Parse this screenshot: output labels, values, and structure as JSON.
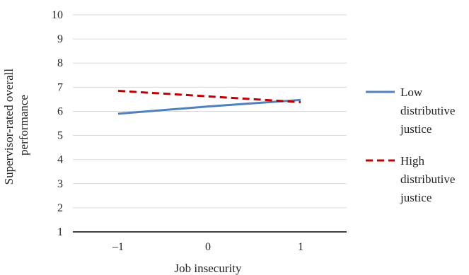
{
  "chart_data": {
    "type": "line",
    "title": "",
    "xlabel": "Job insecurity",
    "ylabel_lines": [
      "Supervisor-rated overall",
      "performance"
    ],
    "categories": [
      "–1",
      "0",
      "1"
    ],
    "x": [
      -1,
      0,
      1
    ],
    "ylim": [
      1,
      10
    ],
    "yticks": [
      "1",
      "2",
      "3",
      "4",
      "5",
      "6",
      "7",
      "8",
      "9",
      "10"
    ],
    "grid": true,
    "legend_position": "right",
    "series": [
      {
        "name_lines": [
          "Low",
          "distributive",
          "justice"
        ],
        "values": [
          5.9,
          6.2,
          6.47
        ],
        "color": "#4f81bd",
        "style": "solid"
      },
      {
        "name_lines": [
          "High",
          "distributive",
          "justice"
        ],
        "values": [
          6.85,
          6.62,
          6.38
        ],
        "color": "#c00000",
        "style": "dashed"
      }
    ]
  }
}
